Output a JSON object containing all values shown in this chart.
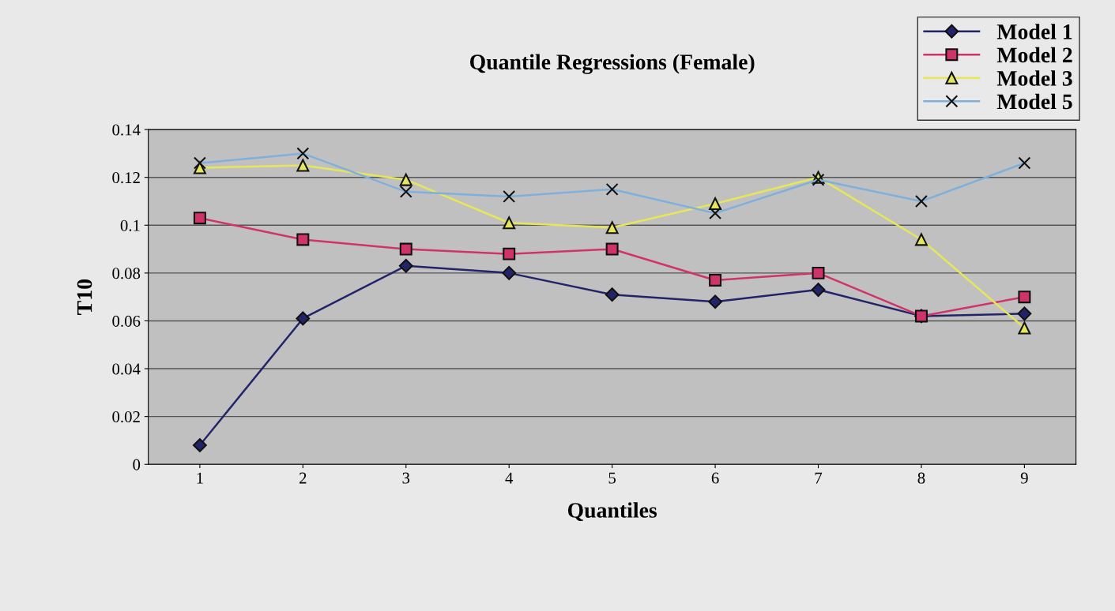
{
  "chart_data": {
    "type": "line",
    "title": "Quantile Regressions (Female)",
    "xlabel": "Quantiles",
    "ylabel": "T10",
    "categories": [
      "1",
      "2",
      "3",
      "4",
      "5",
      "6",
      "7",
      "8",
      "9"
    ],
    "series": [
      {
        "name": "Model 1",
        "color": "#22246a",
        "marker": "diamond",
        "values": [
          0.008,
          0.061,
          0.083,
          0.08,
          0.071,
          0.068,
          0.073,
          0.062,
          0.063
        ]
      },
      {
        "name": "Model 2",
        "color": "#d0336a",
        "marker": "square",
        "values": [
          0.103,
          0.094,
          0.09,
          0.088,
          0.09,
          0.077,
          0.08,
          0.062,
          0.07
        ]
      },
      {
        "name": "Model 3",
        "color": "#e6e65a",
        "marker": "triangle",
        "values": [
          0.124,
          0.125,
          0.119,
          0.101,
          0.099,
          0.109,
          0.12,
          0.094,
          0.057
        ]
      },
      {
        "name": "Model 5",
        "color": "#7fb0dc",
        "marker": "cross",
        "values": [
          0.126,
          0.13,
          0.114,
          0.112,
          0.115,
          0.105,
          0.119,
          0.11,
          0.126
        ]
      }
    ],
    "ylim": [
      0,
      0.14
    ],
    "yticks": [
      0,
      0.02,
      0.04,
      0.06,
      0.08,
      0.1,
      0.12,
      0.14
    ],
    "grid": "y",
    "legend": "top right"
  }
}
